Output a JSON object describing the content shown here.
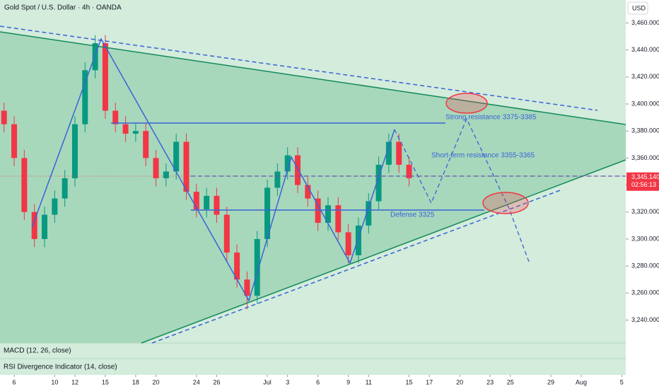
{
  "chart_data": {
    "type": "candlestick",
    "title": "Gold Spot / U.S. Dollar · 4h · OANDA",
    "currency": "USD",
    "x": [
      -1,
      0,
      1,
      2,
      3,
      4,
      5,
      6,
      7,
      8,
      9,
      10,
      11,
      12,
      13,
      14,
      15,
      16,
      17,
      18,
      19,
      20,
      21,
      22,
      23,
      24,
      25,
      26,
      27,
      28,
      29,
      30,
      31,
      32,
      33,
      34,
      35,
      36,
      37,
      38,
      39
    ],
    "open": [
      3395,
      3385,
      3360,
      3320,
      3300,
      3318,
      3330,
      3345,
      3385,
      3425,
      3445,
      3395,
      3385,
      3378,
      3380,
      3360,
      3345,
      3350,
      3372,
      3335,
      3322,
      3332,
      3318,
      3290,
      3270,
      3258,
      3300,
      3338,
      3350,
      3362,
      3340,
      3330,
      3312,
      3325,
      3305,
      3288,
      3310,
      3328,
      3355,
      3372,
      3355
    ],
    "high": [
      3401,
      3391,
      3366,
      3326,
      3324,
      3336,
      3351,
      3391,
      3431,
      3451,
      3451,
      3401,
      3391,
      3386,
      3386,
      3366,
      3356,
      3378,
      3378,
      3341,
      3338,
      3338,
      3324,
      3296,
      3276,
      3306,
      3344,
      3356,
      3368,
      3368,
      3346,
      3336,
      3331,
      3331,
      3311,
      3316,
      3334,
      3361,
      3378,
      3378,
      3361
    ],
    "low": [
      3379,
      3354,
      3314,
      3294,
      3294,
      3312,
      3324,
      3339,
      3379,
      3419,
      3389,
      3379,
      3372,
      3372,
      3354,
      3339,
      3339,
      3344,
      3329,
      3316,
      3316,
      3312,
      3284,
      3264,
      3248,
      3252,
      3294,
      3332,
      3344,
      3334,
      3324,
      3306,
      3306,
      3299,
      3282,
      3282,
      3304,
      3322,
      3349,
      3349,
      3339
    ],
    "close": [
      3385,
      3360,
      3320,
      3300,
      3318,
      3330,
      3345,
      3385,
      3425,
      3445,
      3395,
      3385,
      3378,
      3380,
      3360,
      3345,
      3350,
      3372,
      3335,
      3322,
      3332,
      3318,
      3290,
      3270,
      3258,
      3300,
      3338,
      3350,
      3362,
      3340,
      3330,
      3312,
      3325,
      3305,
      3288,
      3310,
      3328,
      3355,
      3372,
      3355,
      3345
    ],
    "up_color": "#089981",
    "down_color": "#f23645",
    "xlim": [
      -1.4,
      60.4
    ],
    "xticks": [
      {
        "value": 0,
        "label": "6"
      },
      {
        "value": 4,
        "label": "10"
      },
      {
        "value": 6,
        "label": "12"
      },
      {
        "value": 9,
        "label": "15"
      },
      {
        "value": 12,
        "label": "18"
      },
      {
        "value": 14,
        "label": "20"
      },
      {
        "value": 18,
        "label": "24"
      },
      {
        "value": 20,
        "label": "26"
      },
      {
        "value": 25,
        "label": "Jul"
      },
      {
        "value": 27,
        "label": "3"
      },
      {
        "value": 30,
        "label": "6"
      },
      {
        "value": 33,
        "label": "9"
      },
      {
        "value": 35,
        "label": "11"
      },
      {
        "value": 39,
        "label": "15"
      },
      {
        "value": 41,
        "label": "17"
      },
      {
        "value": 44,
        "label": "20"
      },
      {
        "value": 47,
        "label": "23"
      },
      {
        "value": 49,
        "label": "25"
      },
      {
        "value": 53,
        "label": "29"
      },
      {
        "value": 56,
        "label": "Aug"
      },
      {
        "value": 60,
        "label": "5"
      }
    ],
    "ylim": [
      3223,
      3477
    ],
    "yticks": [
      {
        "value": 3240,
        "label": "3,240.000"
      },
      {
        "value": 3260,
        "label": "3,260.000"
      },
      {
        "value": 3280,
        "label": "3,280.000"
      },
      {
        "value": 3300,
        "label": "3,300.000"
      },
      {
        "value": 3320,
        "label": "3,320.000"
      },
      {
        "value": 3340,
        "label": "3,340.000"
      },
      {
        "value": 3360,
        "label": "3,360.000"
      },
      {
        "value": 3380,
        "label": "3,380.000"
      },
      {
        "value": 3400,
        "label": "3,400.000"
      },
      {
        "value": 3420,
        "label": "3,420.000"
      },
      {
        "value": 3440,
        "label": "3,440.000"
      },
      {
        "value": 3460,
        "label": "3,460.000"
      }
    ],
    "last_price": {
      "value": 3345.14,
      "label": "3,345.140"
    },
    "countdown": "02:56:13",
    "annotations": [
      "Strong resistance 3375-3385",
      "Short-term resistance 3355-3365",
      "Defense 3325"
    ],
    "indicators": [
      "MACD (12, 26, close)",
      "RSI Divergence Indicator (14, close)"
    ]
  }
}
